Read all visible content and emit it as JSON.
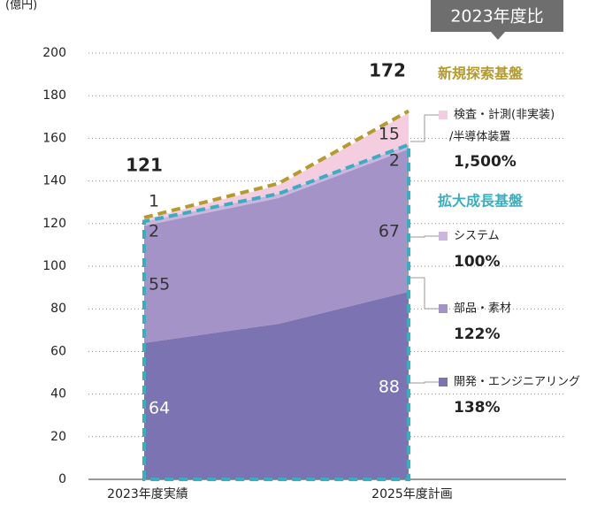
{
  "chart_data": {
    "type": "stacked_area",
    "unit_label": "(億円)",
    "badge": "2023年度比",
    "categories": [
      "2023年度実績",
      null,
      "2025年度計画"
    ],
    "ylim": [
      0,
      200
    ],
    "yticks": [
      0,
      20,
      40,
      60,
      80,
      100,
      120,
      140,
      160,
      180,
      200
    ],
    "grid": true,
    "series": [
      {
        "name": [
          "開発・エンジニアリング"
        ],
        "color": "#7b73b2",
        "values": [
          64,
          73,
          88
        ],
        "growth": "138%"
      },
      {
        "name": [
          "部品・素材"
        ],
        "color": "#a493c7",
        "values": [
          55,
          59,
          67
        ],
        "growth": "122%"
      },
      {
        "name": [
          "システム"
        ],
        "color": "#cdb6de",
        "values": [
          2,
          2,
          2
        ],
        "growth": "100%"
      },
      {
        "name": [
          "検査・計測(非実装)",
          "/半導体装置"
        ],
        "color": "#f4cde1",
        "values": [
          1,
          4,
          15
        ],
        "growth": "1,500%"
      }
    ],
    "totals": [
      121,
      null,
      172
    ],
    "groups": [
      {
        "name": "新規探索基盤",
        "color": "#b49b2c"
      },
      {
        "name": "拡大成長基盤",
        "color": "#3aaec0"
      }
    ]
  }
}
